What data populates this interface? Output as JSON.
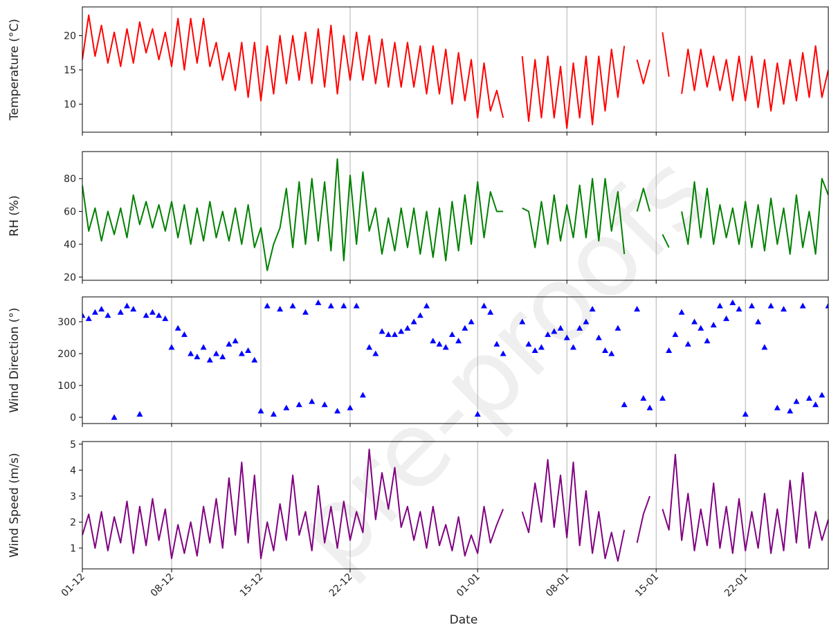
{
  "watermark": "pre-proofs",
  "chart_data": [
    {
      "type": "line",
      "ylabel": "Temperature (°C)",
      "color": "#ff0000",
      "grid": "x",
      "xlim": [
        0,
        58.5
      ],
      "xticks": [
        {
          "value": 0,
          "label": "01-12"
        },
        {
          "value": 7,
          "label": "08-12"
        },
        {
          "value": 14,
          "label": "15-12"
        },
        {
          "value": 21,
          "label": "22-12"
        },
        {
          "value": 31,
          "label": "01-01"
        },
        {
          "value": 38,
          "label": "08-01"
        },
        {
          "value": 45,
          "label": "15-01"
        },
        {
          "value": 52,
          "label": "22-01"
        }
      ],
      "ylim": [
        5.9,
        24.2
      ],
      "yticks": [
        10,
        15,
        20
      ],
      "x": [
        0,
        0.5,
        1,
        1.5,
        2,
        2.5,
        3,
        3.5,
        4,
        4.5,
        5,
        5.5,
        6,
        6.5,
        7,
        7.5,
        8,
        8.5,
        9,
        9.5,
        10,
        10.5,
        11,
        11.5,
        12,
        12.5,
        13,
        13.5,
        14,
        14.5,
        15,
        15.5,
        16,
        16.5,
        17,
        17.5,
        18,
        18.5,
        19,
        19.5,
        20,
        20.5,
        21,
        21.5,
        22,
        22.5,
        23,
        23.5,
        24,
        24.5,
        25,
        25.5,
        26,
        26.5,
        27,
        27.5,
        28,
        28.5,
        29,
        29.5,
        30,
        30.5,
        31,
        31.5,
        32,
        32.5,
        33,
        33.5,
        34,
        34.5,
        35,
        35.5,
        36,
        36.5,
        37,
        37.5,
        38,
        38.5,
        39,
        39.5,
        40,
        40.5,
        41,
        41.5,
        42,
        42.5,
        43,
        43.5,
        44,
        44.5,
        45,
        45.5,
        46,
        46.5,
        47,
        47.5,
        48,
        48.5,
        49,
        49.5,
        50,
        50.5,
        51,
        51.5,
        52,
        52.5,
        53,
        53.5,
        54,
        54.5,
        55,
        55.5,
        56,
        56.5,
        57,
        57.5,
        58,
        58.5
      ],
      "values": [
        16.5,
        23,
        17,
        21.5,
        16,
        20.5,
        15.5,
        21,
        16,
        22,
        17.5,
        21,
        16.5,
        20.5,
        15.5,
        22.5,
        15,
        22.5,
        16,
        22.5,
        15.5,
        19,
        13.5,
        17.5,
        12,
        19,
        11,
        19,
        10.5,
        18.5,
        11.5,
        20,
        13,
        20,
        13.5,
        20.5,
        13,
        21,
        12.5,
        21.5,
        11.5,
        20,
        13.5,
        20.5,
        13.5,
        20,
        13,
        19.5,
        12.5,
        19,
        12.5,
        19,
        12.5,
        18.5,
        11.5,
        18.5,
        11.5,
        18,
        10,
        17.5,
        10.5,
        16.5,
        8,
        16,
        9,
        12,
        8,
        null,
        null,
        17,
        7.5,
        16.5,
        8,
        17,
        8,
        15.5,
        6.5,
        16,
        8,
        17,
        7,
        17,
        9,
        18,
        11,
        18.5,
        null,
        16.5,
        13,
        16.5,
        null,
        20.5,
        14,
        null,
        11.5,
        18,
        12,
        18,
        12.5,
        17,
        12,
        16.5,
        10.5,
        17,
        10.5,
        17,
        9.5,
        16.5,
        9,
        16,
        10,
        16.5,
        10.5,
        17.5,
        11,
        18.5,
        11,
        15
      ]
    },
    {
      "type": "line",
      "ylabel": "RH (%)",
      "color": "#008000",
      "grid": "x",
      "xlim": [
        0,
        58.5
      ],
      "xticks": [
        {
          "value": 0,
          "label": "01-12"
        },
        {
          "value": 7,
          "label": "08-12"
        },
        {
          "value": 14,
          "label": "15-12"
        },
        {
          "value": 21,
          "label": "22-12"
        },
        {
          "value": 31,
          "label": "01-01"
        },
        {
          "value": 38,
          "label": "08-01"
        },
        {
          "value": 45,
          "label": "15-01"
        },
        {
          "value": 52,
          "label": "22-01"
        }
      ],
      "ylim": [
        18,
        96.5
      ],
      "yticks": [
        20,
        40,
        60,
        80
      ],
      "x": [
        0,
        0.5,
        1,
        1.5,
        2,
        2.5,
        3,
        3.5,
        4,
        4.5,
        5,
        5.5,
        6,
        6.5,
        7,
        7.5,
        8,
        8.5,
        9,
        9.5,
        10,
        10.5,
        11,
        11.5,
        12,
        12.5,
        13,
        13.5,
        14,
        14.5,
        15,
        15.5,
        16,
        16.5,
        17,
        17.5,
        18,
        18.5,
        19,
        19.5,
        20,
        20.5,
        21,
        21.5,
        22,
        22.5,
        23,
        23.5,
        24,
        24.5,
        25,
        25.5,
        26,
        26.5,
        27,
        27.5,
        28,
        28.5,
        29,
        29.5,
        30,
        30.5,
        31,
        31.5,
        32,
        32.5,
        33,
        33.5,
        34,
        34.5,
        35,
        35.5,
        36,
        36.5,
        37,
        37.5,
        38,
        38.5,
        39,
        39.5,
        40,
        40.5,
        41,
        41.5,
        42,
        42.5,
        43,
        43.5,
        44,
        44.5,
        45,
        45.5,
        46,
        46.5,
        47,
        47.5,
        48,
        48.5,
        49,
        49.5,
        50,
        50.5,
        51,
        51.5,
        52,
        52.5,
        53,
        53.5,
        54,
        54.5,
        55,
        55.5,
        56,
        56.5,
        57,
        57.5,
        58,
        58.5
      ],
      "values": [
        76,
        48,
        62,
        42,
        60,
        46,
        62,
        44,
        70,
        52,
        66,
        50,
        64,
        48,
        66,
        44,
        64,
        40,
        62,
        42,
        66,
        44,
        60,
        42,
        62,
        40,
        64,
        38,
        50,
        24,
        40,
        50,
        74,
        38,
        78,
        40,
        80,
        42,
        78,
        36,
        92,
        30,
        82,
        40,
        84,
        48,
        62,
        34,
        56,
        36,
        62,
        38,
        62,
        34,
        60,
        32,
        62,
        30,
        66,
        36,
        70,
        40,
        78,
        44,
        72,
        60,
        60,
        null,
        null,
        62,
        60,
        38,
        66,
        40,
        70,
        42,
        64,
        44,
        76,
        44,
        80,
        42,
        80,
        48,
        72,
        34,
        null,
        60,
        74,
        60,
        null,
        46,
        38,
        null,
        60,
        40,
        78,
        44,
        74,
        40,
        64,
        44,
        62,
        40,
        66,
        38,
        64,
        36,
        68,
        40,
        62,
        34,
        70,
        38,
        60,
        34,
        80,
        70
      ]
    },
    {
      "type": "scatter",
      "ylabel": "Wind Direction (°)",
      "color": "#0000ff",
      "grid": "x",
      "xlim": [
        0,
        58.5
      ],
      "xticks": [
        {
          "value": 0,
          "label": "01-12"
        },
        {
          "value": 7,
          "label": "08-12"
        },
        {
          "value": 14,
          "label": "15-12"
        },
        {
          "value": 21,
          "label": "22-12"
        },
        {
          "value": 31,
          "label": "01-01"
        },
        {
          "value": 38,
          "label": "08-01"
        },
        {
          "value": 45,
          "label": "15-01"
        },
        {
          "value": 52,
          "label": "22-01"
        }
      ],
      "ylim": [
        -19.5,
        378
      ],
      "yticks": [
        0,
        100,
        200,
        300
      ],
      "x": [
        0,
        0.5,
        1,
        1.5,
        2,
        2.5,
        3,
        3.5,
        4,
        4.5,
        5,
        5.5,
        6,
        6.5,
        7,
        7.5,
        8,
        8.5,
        9,
        9.5,
        10,
        10.5,
        11,
        11.5,
        12,
        12.5,
        13,
        13.5,
        14,
        14.5,
        15,
        15.5,
        16,
        16.5,
        17,
        17.5,
        18,
        18.5,
        19,
        19.5,
        20,
        20.5,
        21,
        21.5,
        22,
        22.5,
        23,
        23.5,
        24,
        24.5,
        25,
        25.5,
        26,
        26.5,
        27,
        27.5,
        28,
        28.5,
        29,
        29.5,
        30,
        30.5,
        31,
        31.5,
        32,
        32.5,
        33,
        33.5,
        34,
        34.5,
        35,
        35.5,
        36,
        36.5,
        37,
        37.5,
        38,
        38.5,
        39,
        39.5,
        40,
        40.5,
        41,
        41.5,
        42,
        42.5,
        43,
        43.5,
        44,
        44.5,
        45,
        45.5,
        46,
        46.5,
        47,
        47.5,
        48,
        48.5,
        49,
        49.5,
        50,
        50.5,
        51,
        51.5,
        52,
        52.5,
        53,
        53.5,
        54,
        54.5,
        55,
        55.5,
        56,
        56.5,
        57,
        57.5,
        58,
        58.5
      ],
      "values": [
        320,
        310,
        330,
        340,
        320,
        0,
        330,
        350,
        340,
        10,
        320,
        330,
        320,
        310,
        220,
        280,
        260,
        200,
        190,
        220,
        180,
        200,
        190,
        230,
        240,
        200,
        210,
        180,
        20,
        350,
        10,
        340,
        30,
        350,
        40,
        330,
        50,
        360,
        40,
        350,
        20,
        350,
        30,
        350,
        70,
        220,
        200,
        270,
        260,
        260,
        270,
        280,
        300,
        320,
        350,
        240,
        230,
        220,
        260,
        240,
        280,
        300,
        10,
        350,
        330,
        230,
        200,
        null,
        null,
        300,
        230,
        210,
        220,
        260,
        270,
        280,
        250,
        220,
        280,
        300,
        340,
        250,
        210,
        200,
        280,
        40,
        null,
        340,
        60,
        30,
        null,
        60,
        210,
        260,
        330,
        230,
        300,
        280,
        240,
        290,
        350,
        310,
        360,
        340,
        10,
        350,
        300,
        220,
        350,
        30,
        340,
        20,
        50,
        350,
        60,
        40,
        70,
        350
      ]
    },
    {
      "type": "line",
      "ylabel": "Wind Speed (m/s)",
      "xlabel": "Date",
      "color": "#800080",
      "grid": "x",
      "xlim": [
        0,
        58.5
      ],
      "xticks": [
        {
          "value": 0,
          "label": "01-12"
        },
        {
          "value": 7,
          "label": "08-12"
        },
        {
          "value": 14,
          "label": "15-12"
        },
        {
          "value": 21,
          "label": "22-12"
        },
        {
          "value": 31,
          "label": "01-01"
        },
        {
          "value": 38,
          "label": "08-01"
        },
        {
          "value": 45,
          "label": "15-01"
        },
        {
          "value": 52,
          "label": "22-01"
        }
      ],
      "ylim": [
        0.2,
        5.1
      ],
      "yticks": [
        1,
        2,
        3,
        4,
        5
      ],
      "x": [
        0,
        0.5,
        1,
        1.5,
        2,
        2.5,
        3,
        3.5,
        4,
        4.5,
        5,
        5.5,
        6,
        6.5,
        7,
        7.5,
        8,
        8.5,
        9,
        9.5,
        10,
        10.5,
        11,
        11.5,
        12,
        12.5,
        13,
        13.5,
        14,
        14.5,
        15,
        15.5,
        16,
        16.5,
        17,
        17.5,
        18,
        18.5,
        19,
        19.5,
        20,
        20.5,
        21,
        21.5,
        22,
        22.5,
        23,
        23.5,
        24,
        24.5,
        25,
        25.5,
        26,
        26.5,
        27,
        27.5,
        28,
        28.5,
        29,
        29.5,
        30,
        30.5,
        31,
        31.5,
        32,
        32.5,
        33,
        33.5,
        34,
        34.5,
        35,
        35.5,
        36,
        36.5,
        37,
        37.5,
        38,
        38.5,
        39,
        39.5,
        40,
        40.5,
        41,
        41.5,
        42,
        42.5,
        43,
        43.5,
        44,
        44.5,
        45,
        45.5,
        46,
        46.5,
        47,
        47.5,
        48,
        48.5,
        49,
        49.5,
        50,
        50.5,
        51,
        51.5,
        52,
        52.5,
        53,
        53.5,
        54,
        54.5,
        55,
        55.5,
        56,
        56.5,
        57,
        57.5,
        58,
        58.5
      ],
      "values": [
        1.5,
        2.3,
        1.0,
        2.4,
        0.9,
        2.2,
        1.2,
        2.8,
        0.8,
        2.6,
        1.1,
        2.9,
        1.3,
        2.5,
        0.6,
        1.9,
        0.8,
        2.0,
        0.7,
        2.6,
        1.2,
        2.9,
        1.0,
        3.7,
        1.5,
        4.3,
        1.2,
        3.8,
        0.6,
        2.0,
        0.9,
        2.7,
        1.3,
        3.8,
        1.5,
        2.4,
        0.9,
        3.4,
        1.2,
        2.6,
        1.0,
        2.8,
        1.3,
        2.4,
        1.6,
        4.8,
        2.1,
        3.9,
        2.5,
        4.1,
        1.8,
        2.6,
        1.3,
        2.4,
        1.0,
        2.6,
        1.1,
        1.9,
        0.9,
        2.2,
        0.7,
        1.5,
        0.8,
        2.6,
        1.2,
        1.9,
        2.5,
        null,
        null,
        2.4,
        1.6,
        3.5,
        2.0,
        4.4,
        1.8,
        3.8,
        1.4,
        4.3,
        1.1,
        3.2,
        0.8,
        2.4,
        0.6,
        1.6,
        0.5,
        1.7,
        null,
        1.2,
        2.3,
        3.0,
        null,
        2.5,
        1.7,
        4.6,
        1.3,
        3.1,
        0.9,
        2.5,
        1.1,
        3.5,
        1.0,
        2.6,
        0.8,
        2.9,
        0.9,
        2.4,
        1.0,
        3.1,
        0.8,
        2.5,
        0.9,
        3.6,
        1.2,
        3.9,
        1.0,
        2.4,
        1.3,
        2.1
      ]
    }
  ]
}
